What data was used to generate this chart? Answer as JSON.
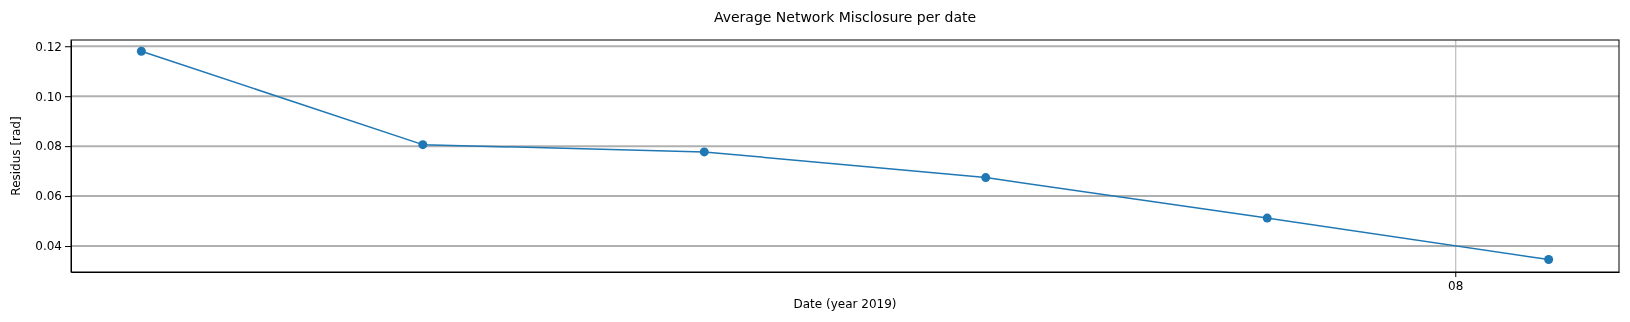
{
  "chart_data": {
    "type": "line",
    "title": "Average Network Misclosure per date",
    "xlabel": "Date (year 2019)",
    "ylabel": "Residus [rad]",
    "categories": [
      null,
      null,
      null,
      null,
      null,
      null
    ],
    "series": [
      {
        "color": "#1f77b4",
        "values": [
          0.118,
          0.0806,
          0.0777,
          0.0674,
          0.0512,
          0.0346
        ]
      }
    ],
    "annotations": [
      "08"
    ],
    "ylim": [
      0.0296,
      0.1225
    ],
    "yticks": [
      {
        "value": 0.04,
        "label": "0.04"
      },
      {
        "value": 0.06,
        "label": "0.06"
      },
      {
        "value": 0.08,
        "label": "0.08"
      },
      {
        "value": 0.1,
        "label": "0.10"
      },
      {
        "value": 0.12,
        "label": "0.12"
      }
    ],
    "grid": true,
    "marker": "circle",
    "line_style": "solid"
  }
}
